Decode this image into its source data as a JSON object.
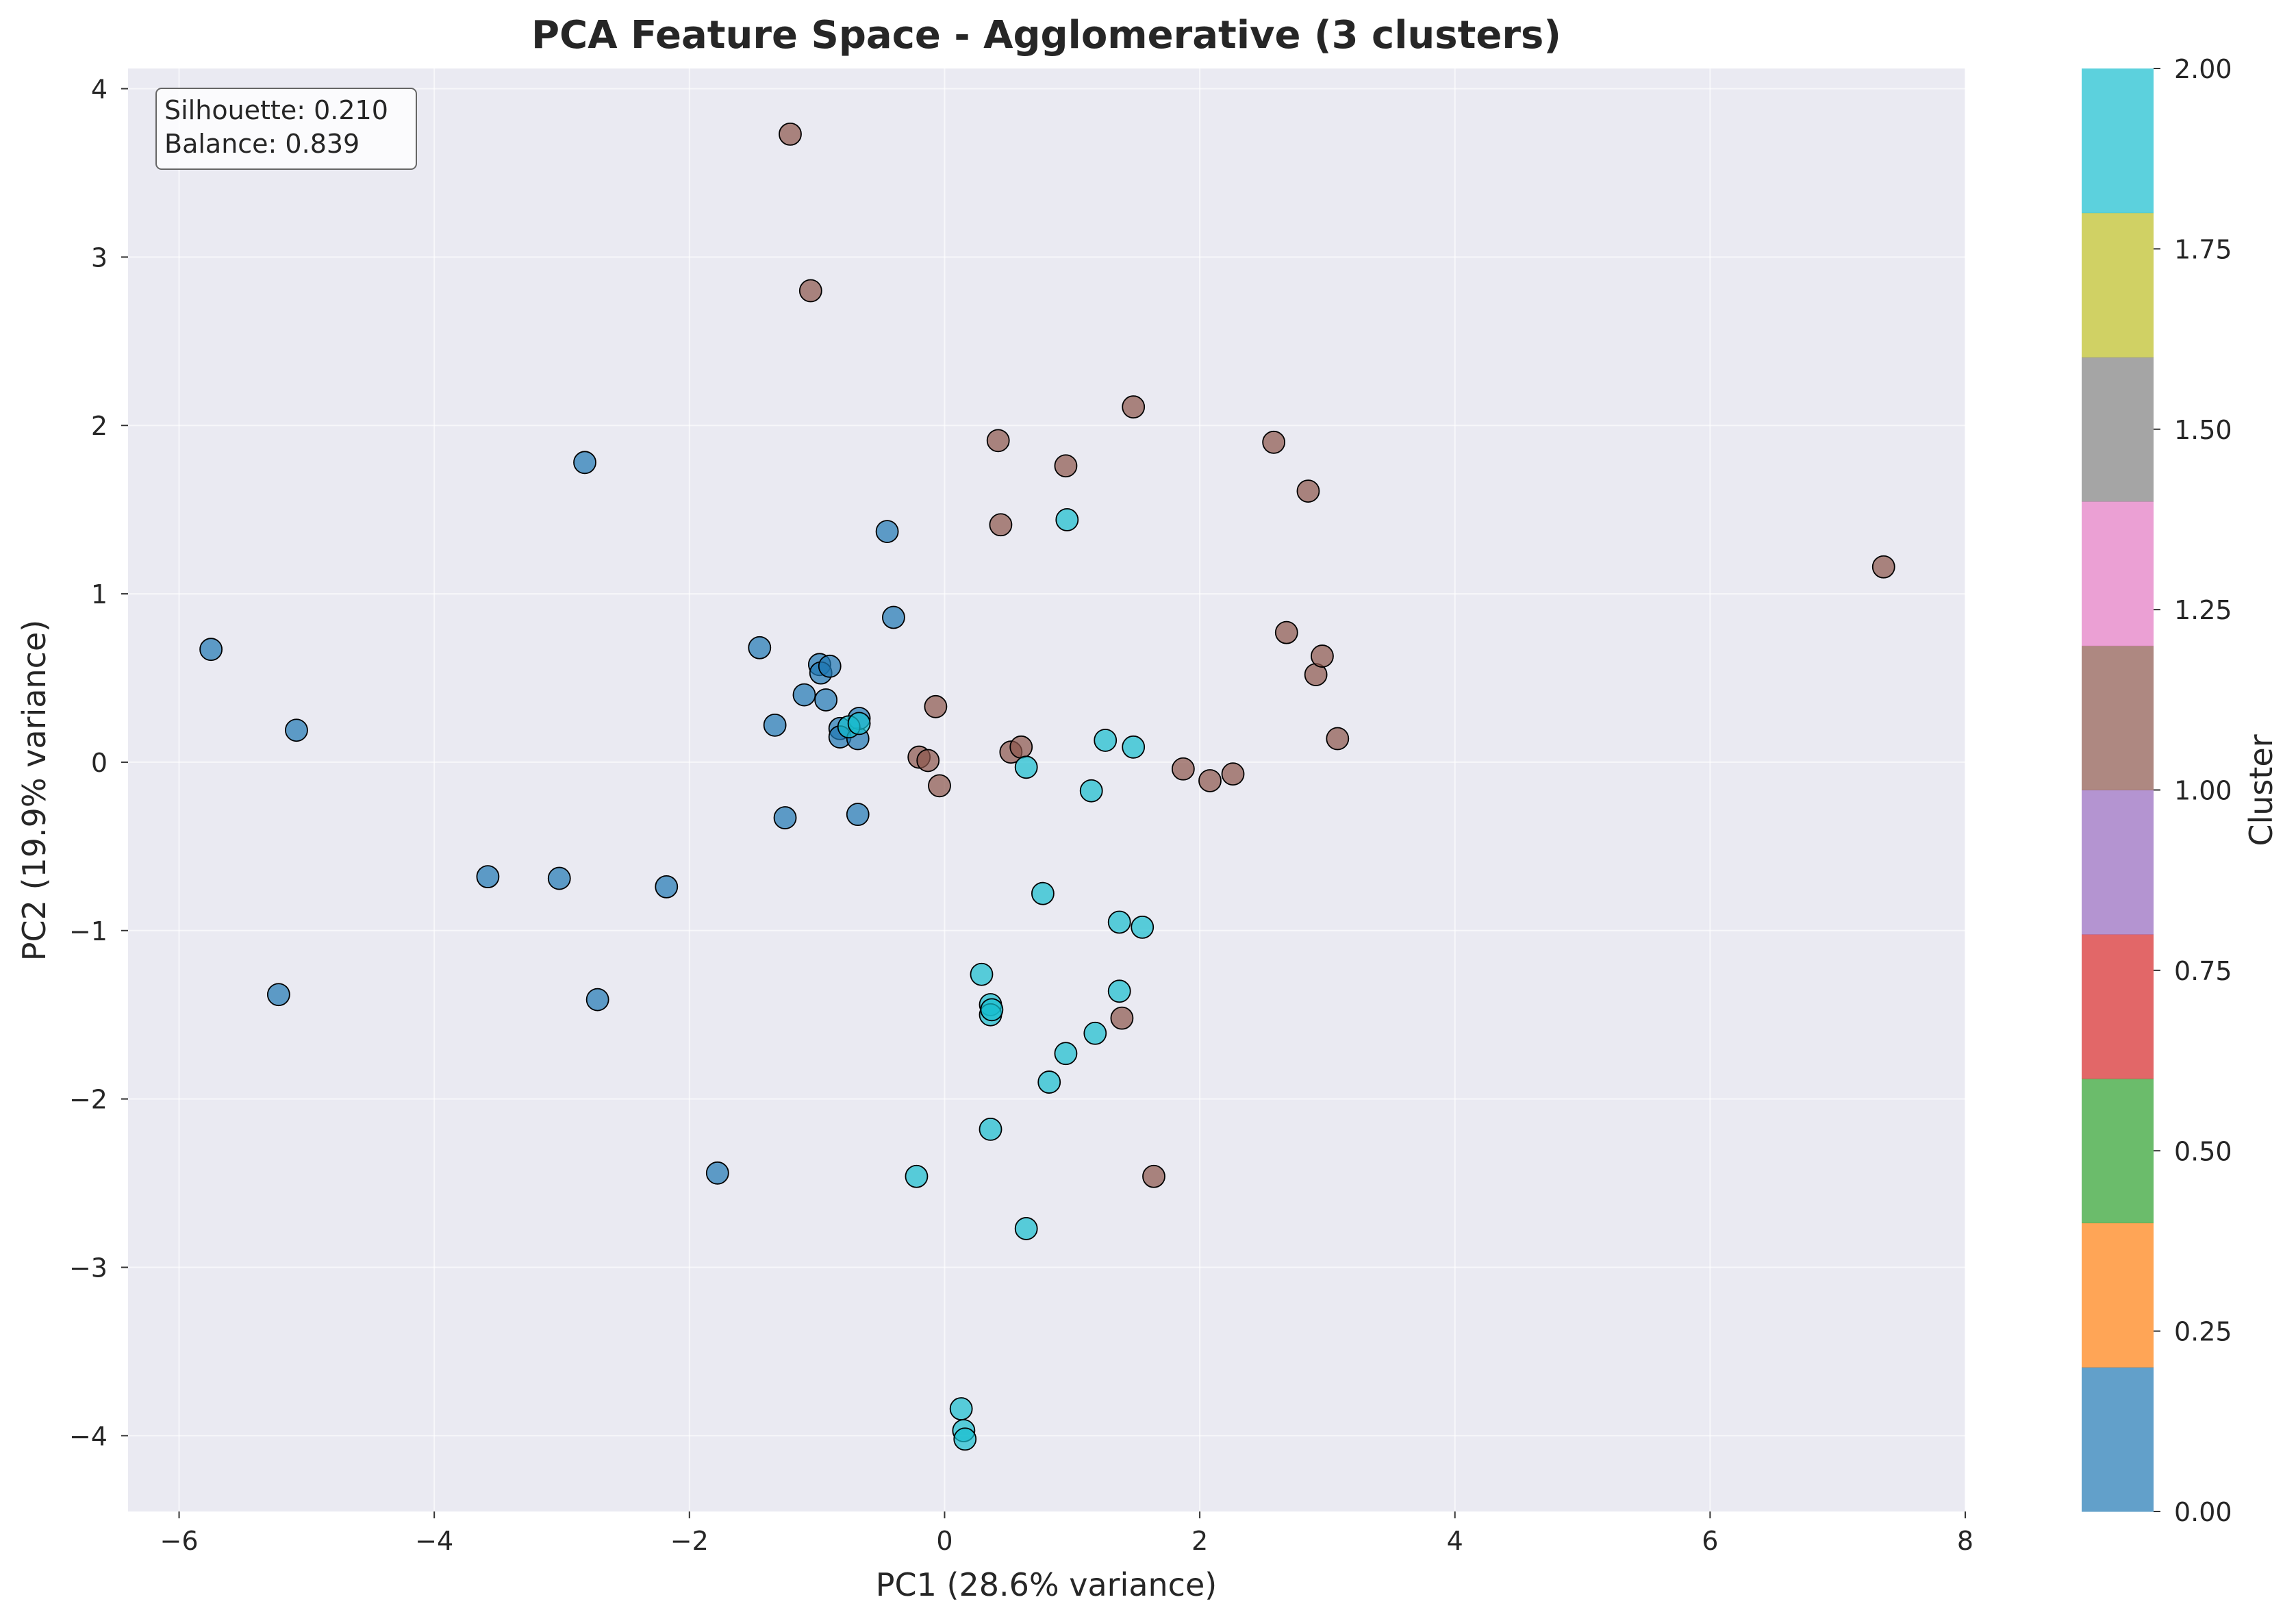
{
  "chart_data": {
    "type": "scatter",
    "title": "PCA Feature Space - Agglomerative (3 clusters)",
    "xlabel": "PC1 (28.6% variance)",
    "ylabel": "PC2 (19.9% variance)",
    "xlim": [
      -6.4,
      8.0
    ],
    "ylim": [
      -4.45,
      4.12
    ],
    "xticks": [
      -6,
      -4,
      -2,
      0,
      2,
      4,
      6,
      8
    ],
    "yticks": [
      -4,
      -3,
      -2,
      -1,
      0,
      1,
      2,
      3,
      4
    ],
    "xtick_labels": [
      "−6",
      "−4",
      "−2",
      "0",
      "2",
      "4",
      "6",
      "8"
    ],
    "ytick_labels": [
      "−4",
      "−3",
      "−2",
      "−1",
      "0",
      "1",
      "2",
      "3",
      "4"
    ],
    "grid": true,
    "annotation": {
      "lines": [
        "Silhouette: 0.210",
        "Balance: 0.839"
      ]
    },
    "colorbar": {
      "label": "Cluster",
      "range": [
        0,
        2
      ],
      "ticks": [
        0,
        0.25,
        0.5,
        0.75,
        1.0,
        1.25,
        1.5,
        1.75,
        2.0
      ],
      "tick_labels": [
        "0.00",
        "0.25",
        "0.50",
        "0.75",
        "1.00",
        "1.25",
        "1.50",
        "1.75",
        "2.00"
      ],
      "colors": [
        "#1f77b4",
        "#ff7f0e",
        "#2ca02c",
        "#d62728",
        "#9467bd",
        "#8c564b",
        "#e377c2",
        "#7f7f7f",
        "#bcbd22",
        "#17becf"
      ]
    },
    "cluster_colors": {
      "0": "#1f77b4",
      "1": "#8c564b",
      "2": "#17becf"
    },
    "points": [
      {
        "x": -5.75,
        "y": 0.67,
        "c": 0
      },
      {
        "x": -5.08,
        "y": 0.19,
        "c": 0
      },
      {
        "x": -5.22,
        "y": -1.38,
        "c": 0
      },
      {
        "x": -3.58,
        "y": -0.68,
        "c": 0
      },
      {
        "x": -3.02,
        "y": -0.69,
        "c": 0
      },
      {
        "x": -2.82,
        "y": 1.78,
        "c": 0
      },
      {
        "x": -2.72,
        "y": -1.41,
        "c": 0
      },
      {
        "x": -2.18,
        "y": -0.74,
        "c": 0
      },
      {
        "x": -1.78,
        "y": -2.44,
        "c": 0
      },
      {
        "x": -1.45,
        "y": 0.68,
        "c": 0
      },
      {
        "x": -1.33,
        "y": 0.22,
        "c": 0
      },
      {
        "x": -1.25,
        "y": -0.33,
        "c": 0
      },
      {
        "x": -1.1,
        "y": 0.4,
        "c": 0
      },
      {
        "x": -0.98,
        "y": 0.58,
        "c": 0
      },
      {
        "x": -0.97,
        "y": 0.53,
        "c": 0
      },
      {
        "x": -0.93,
        "y": 0.37,
        "c": 0
      },
      {
        "x": -0.9,
        "y": 0.57,
        "c": 0
      },
      {
        "x": -0.82,
        "y": 0.2,
        "c": 0
      },
      {
        "x": -0.82,
        "y": 0.15,
        "c": 0
      },
      {
        "x": -0.68,
        "y": 0.14,
        "c": 0
      },
      {
        "x": -0.68,
        "y": -0.31,
        "c": 0
      },
      {
        "x": -0.67,
        "y": 0.26,
        "c": 0
      },
      {
        "x": -0.45,
        "y": 1.37,
        "c": 0
      },
      {
        "x": -0.4,
        "y": 0.86,
        "c": 0
      },
      {
        "x": -1.21,
        "y": 3.73,
        "c": 1
      },
      {
        "x": -1.05,
        "y": 2.8,
        "c": 1
      },
      {
        "x": -0.2,
        "y": 0.03,
        "c": 1
      },
      {
        "x": -0.13,
        "y": 0.01,
        "c": 1
      },
      {
        "x": -0.07,
        "y": 0.33,
        "c": 1
      },
      {
        "x": -0.04,
        "y": -0.14,
        "c": 1
      },
      {
        "x": 0.42,
        "y": 1.91,
        "c": 1
      },
      {
        "x": 0.44,
        "y": 1.41,
        "c": 1
      },
      {
        "x": 0.52,
        "y": 0.06,
        "c": 1
      },
      {
        "x": 0.6,
        "y": 0.09,
        "c": 1
      },
      {
        "x": 0.95,
        "y": 1.76,
        "c": 1
      },
      {
        "x": 1.48,
        "y": 2.11,
        "c": 1
      },
      {
        "x": 1.39,
        "y": -1.52,
        "c": 1
      },
      {
        "x": 1.64,
        "y": -2.46,
        "c": 1
      },
      {
        "x": 1.87,
        "y": -0.04,
        "c": 1
      },
      {
        "x": 2.08,
        "y": -0.11,
        "c": 1
      },
      {
        "x": 2.26,
        "y": -0.07,
        "c": 1
      },
      {
        "x": 2.58,
        "y": 1.9,
        "c": 1
      },
      {
        "x": 2.68,
        "y": 0.77,
        "c": 1
      },
      {
        "x": 2.85,
        "y": 1.61,
        "c": 1
      },
      {
        "x": 2.91,
        "y": 0.52,
        "c": 1
      },
      {
        "x": 2.96,
        "y": 0.63,
        "c": 1
      },
      {
        "x": 3.08,
        "y": 0.14,
        "c": 1
      },
      {
        "x": 7.36,
        "y": 1.16,
        "c": 1
      },
      {
        "x": -0.75,
        "y": 0.21,
        "c": 2
      },
      {
        "x": -0.67,
        "y": 0.23,
        "c": 2
      },
      {
        "x": -0.22,
        "y": -2.46,
        "c": 2
      },
      {
        "x": 0.13,
        "y": -3.84,
        "c": 2
      },
      {
        "x": 0.15,
        "y": -3.97,
        "c": 2
      },
      {
        "x": 0.16,
        "y": -4.02,
        "c": 2
      },
      {
        "x": 0.29,
        "y": -1.26,
        "c": 2
      },
      {
        "x": 0.36,
        "y": -1.44,
        "c": 2
      },
      {
        "x": 0.36,
        "y": -1.5,
        "c": 2
      },
      {
        "x": 0.37,
        "y": -1.47,
        "c": 2
      },
      {
        "x": 0.36,
        "y": -2.18,
        "c": 2
      },
      {
        "x": 0.64,
        "y": -0.03,
        "c": 2
      },
      {
        "x": 0.64,
        "y": -2.77,
        "c": 2
      },
      {
        "x": 0.77,
        "y": -0.78,
        "c": 2
      },
      {
        "x": 0.82,
        "y": -1.9,
        "c": 2
      },
      {
        "x": 0.95,
        "y": -1.73,
        "c": 2
      },
      {
        "x": 0.96,
        "y": 1.44,
        "c": 2
      },
      {
        "x": 1.15,
        "y": -0.17,
        "c": 2
      },
      {
        "x": 1.18,
        "y": -1.61,
        "c": 2
      },
      {
        "x": 1.26,
        "y": 0.13,
        "c": 2
      },
      {
        "x": 1.37,
        "y": -0.95,
        "c": 2
      },
      {
        "x": 1.37,
        "y": -1.36,
        "c": 2
      },
      {
        "x": 1.48,
        "y": 0.09,
        "c": 2
      },
      {
        "x": 1.55,
        "y": -0.98,
        "c": 2
      }
    ]
  }
}
